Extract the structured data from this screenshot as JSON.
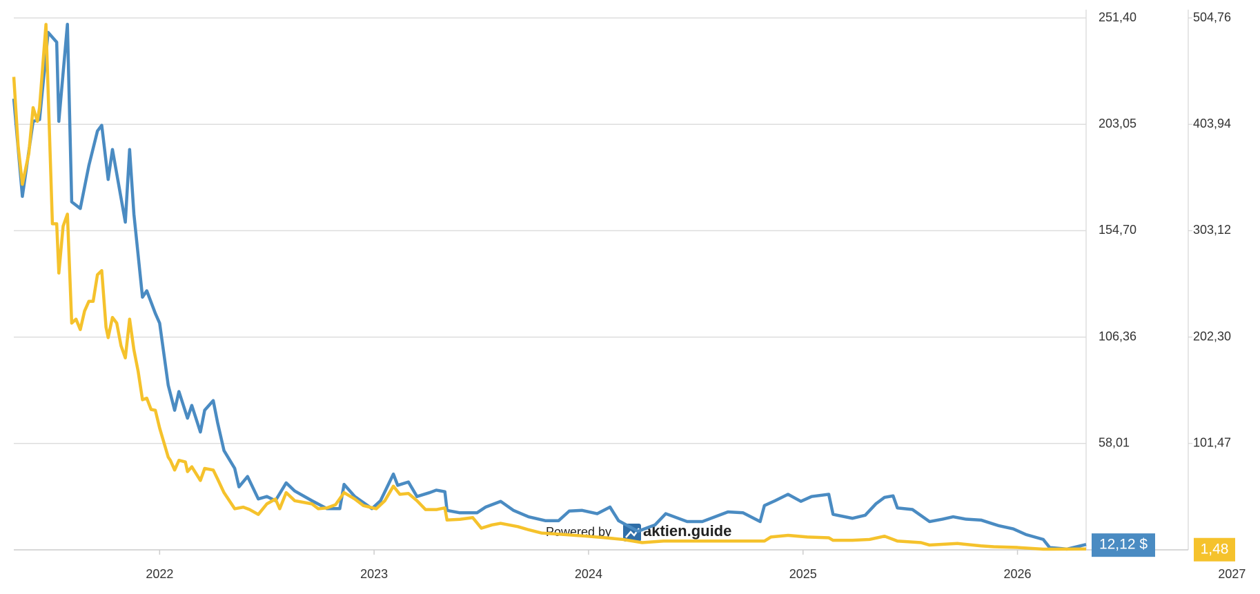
{
  "chart_data": {
    "type": "line",
    "grid": true,
    "xlim": [
      2021.32,
      2026.32
    ],
    "xticks": [
      2022,
      2023,
      2024,
      2025,
      2026,
      2027
    ],
    "ylim": [
      9.66,
      251.4
    ],
    "yticks": [
      {
        "value": 58.01,
        "label": "58,01"
      },
      {
        "value": 106.36,
        "label": "106,36"
      },
      {
        "value": 154.7,
        "label": "154,70"
      },
      {
        "value": 203.05,
        "label": "203,05"
      },
      {
        "value": 251.4,
        "label": "251,40"
      }
    ],
    "y2lim": [
      0.65,
      504.76
    ],
    "y2ticks": [
      {
        "value": 101.47,
        "label": "101,47"
      },
      {
        "value": 202.3,
        "label": "202,30"
      },
      {
        "value": 303.12,
        "label": "303,12"
      },
      {
        "value": 403.94,
        "label": "403,94"
      },
      {
        "value": 504.76,
        "label": "504,76"
      }
    ],
    "watermark": {
      "prefix": "Powered by",
      "brand": "aktien.guide"
    },
    "series": [
      {
        "color": "#4a8bc2",
        "x": [
          2021.32,
          2021.36,
          2021.41,
          2021.44,
          2021.48,
          2021.52,
          2021.53,
          2021.57,
          2021.59,
          2021.63,
          2021.67,
          2021.71,
          2021.73,
          2021.76,
          2021.78,
          2021.82,
          2021.84,
          2021.86,
          2021.88,
          2021.92,
          2021.94,
          2021.98,
          2022.0,
          2022.04,
          2022.07,
          2022.09,
          2022.13,
          2022.15,
          2022.19,
          2022.21,
          2022.25,
          2022.27,
          2022.3,
          2022.35,
          2022.37,
          2022.41,
          2022.46,
          2022.5,
          2022.54,
          2022.59,
          2022.63,
          2022.71,
          2022.78,
          2022.84,
          2022.86,
          2022.91,
          2022.99,
          2023.03,
          2023.09,
          2023.11,
          2023.16,
          2023.2,
          2023.26,
          2023.29,
          2023.33,
          2023.34,
          2023.4,
          2023.48,
          2023.52,
          2023.59,
          2023.65,
          2023.72,
          2023.8,
          2023.86,
          2023.91,
          2023.97,
          2024.04,
          2024.1,
          2024.14,
          2024.23,
          2024.31,
          2024.36,
          2024.46,
          2024.53,
          2024.65,
          2024.72,
          2024.8,
          2024.82,
          2024.87,
          2024.93,
          2024.99,
          2025.04,
          2025.12,
          2025.14,
          2025.23,
          2025.29,
          2025.34,
          2025.38,
          2025.42,
          2025.44,
          2025.51,
          2025.59,
          2025.65,
          2025.7,
          2025.76,
          2025.83,
          2025.91,
          2025.98,
          2026.04,
          2026.12,
          2026.15,
          2026.23,
          2026.32
        ],
        "values": [
          214.7,
          170.3,
          204.4,
          205.2,
          244.8,
          240.4,
          204.4,
          248.5,
          167.8,
          164.8,
          184.3,
          200.0,
          202.6,
          178.0,
          191.6,
          169.6,
          158.6,
          191.6,
          162.3,
          124.5,
          127.4,
          117.1,
          112.7,
          84.5,
          73.1,
          81.6,
          69.5,
          75.3,
          63.2,
          73.1,
          77.5,
          67.6,
          54.8,
          46.7,
          38.3,
          43.0,
          32.8,
          33.9,
          32.0,
          40.1,
          36.4,
          32.0,
          28.4,
          28.4,
          39.4,
          33.9,
          28.4,
          32.0,
          44.1,
          39.0,
          40.5,
          33.9,
          35.7,
          36.8,
          36.1,
          27.6,
          26.5,
          26.5,
          29.1,
          31.7,
          27.6,
          24.7,
          22.9,
          22.9,
          27.3,
          27.6,
          26.1,
          29.1,
          22.9,
          18.1,
          21.0,
          26.1,
          22.5,
          22.5,
          26.9,
          26.5,
          22.5,
          29.8,
          32.0,
          34.9,
          31.7,
          33.9,
          34.9,
          25.8,
          24.0,
          25.4,
          30.6,
          33.5,
          34.2,
          28.7,
          28.0,
          22.5,
          23.6,
          24.7,
          23.6,
          23.2,
          20.7,
          19.2,
          16.6,
          14.4,
          10.7,
          10.0,
          12.12
        ],
        "value_labels": [
          null,
          null,
          null,
          null,
          null,
          null,
          null,
          null,
          null,
          null,
          null,
          null,
          null,
          null,
          null,
          null,
          null,
          null,
          null,
          null,
          null,
          null,
          null,
          null,
          null,
          null,
          null,
          null,
          null,
          null,
          null,
          null,
          null,
          null,
          null,
          null,
          null,
          null,
          null,
          null,
          null,
          null,
          null,
          null,
          null,
          null,
          null,
          null,
          null,
          null,
          null,
          null,
          null,
          null,
          null,
          null,
          null,
          null,
          null,
          null,
          null,
          null,
          null,
          null,
          null,
          null,
          null,
          null,
          null,
          null,
          null,
          null,
          null,
          null,
          null,
          null,
          null,
          null,
          null,
          null,
          null,
          null,
          null,
          null,
          null,
          null,
          null,
          null,
          null,
          null,
          null,
          null,
          null,
          null,
          null,
          null,
          null,
          null,
          null,
          null,
          null,
          null,
          "12,12 $"
        ]
      },
      {
        "color": "#f5c22c",
        "axis": "y2",
        "x": [
          2021.32,
          2021.34,
          2021.36,
          2021.39,
          2021.41,
          2021.43,
          2021.44,
          2021.47,
          2021.5,
          2021.52,
          2021.53,
          2021.55,
          2021.57,
          2021.59,
          2021.61,
          2021.63,
          2021.65,
          2021.67,
          2021.69,
          2021.71,
          2021.73,
          2021.75,
          2021.76,
          2021.78,
          2021.8,
          2021.82,
          2021.84,
          2021.86,
          2021.88,
          2021.9,
          2021.92,
          2021.94,
          2021.96,
          2021.98,
          2022.0,
          2022.02,
          2022.04,
          2022.05,
          2022.07,
          2022.09,
          2022.12,
          2022.13,
          2022.15,
          2022.19,
          2022.21,
          2022.25,
          2022.27,
          2022.3,
          2022.35,
          2022.39,
          2022.42,
          2022.46,
          2022.5,
          2022.54,
          2022.56,
          2022.59,
          2022.63,
          2022.71,
          2022.74,
          2022.78,
          2022.82,
          2022.86,
          2022.91,
          2022.95,
          2023.01,
          2023.05,
          2023.09,
          2023.12,
          2023.16,
          2023.2,
          2023.24,
          2023.29,
          2023.33,
          2023.34,
          2023.4,
          2023.46,
          2023.5,
          2023.55,
          2023.59,
          2023.67,
          2023.72,
          2023.78,
          2023.89,
          2023.99,
          2024.08,
          2024.16,
          2024.25,
          2024.35,
          2024.44,
          2024.53,
          2024.65,
          2024.74,
          2024.82,
          2024.85,
          2024.93,
          2025.02,
          2025.12,
          2025.14,
          2025.23,
          2025.31,
          2025.38,
          2025.44,
          2025.55,
          2025.59,
          2025.72,
          2025.83,
          2025.89,
          2026.0,
          2026.12,
          2026.32
        ],
        "values": [
          448.9,
          383.9,
          347.1,
          376.2,
          419.8,
          406.8,
          419.8,
          498.6,
          309.7,
          309.7,
          263.0,
          307.4,
          318.8,
          215.5,
          219.3,
          209.4,
          227.0,
          236.2,
          236.2,
          261.4,
          265.3,
          211.7,
          201.8,
          220.9,
          215.5,
          194.1,
          182.6,
          219.3,
          190.3,
          169.6,
          142.9,
          144.4,
          133.7,
          132.9,
          116.1,
          102.3,
          88.5,
          85.5,
          76.3,
          85.5,
          84.0,
          74.8,
          79.4,
          66.4,
          77.8,
          76.3,
          67.9,
          54.9,
          39.6,
          41.1,
          38.8,
          34.2,
          44.2,
          48.8,
          39.6,
          54.9,
          47.2,
          44.2,
          39.6,
          40.4,
          43.4,
          54.9,
          48.8,
          42.6,
          39.6,
          47.2,
          61.0,
          53.3,
          54.1,
          47.2,
          38.8,
          38.8,
          40.4,
          28.9,
          29.6,
          31.2,
          21.2,
          24.3,
          25.8,
          22.7,
          19.7,
          16.6,
          15.1,
          13.6,
          12.1,
          10.5,
          7.5,
          9.0,
          9.0,
          9.0,
          9.0,
          9.0,
          9.0,
          12.8,
          14.4,
          12.8,
          12.1,
          9.7,
          9.7,
          10.5,
          13.6,
          9.0,
          7.5,
          5.2,
          6.7,
          4.4,
          3.6,
          2.9,
          1.3,
          1.48
        ],
        "value_labels": [
          null,
          null,
          null,
          null,
          null,
          null,
          null,
          null,
          null,
          null,
          null,
          null,
          null,
          null,
          null,
          null,
          null,
          null,
          null,
          null,
          null,
          null,
          null,
          null,
          null,
          null,
          null,
          null,
          null,
          null,
          null,
          null,
          null,
          null,
          null,
          null,
          null,
          null,
          null,
          null,
          null,
          null,
          null,
          null,
          null,
          null,
          null,
          null,
          null,
          null,
          null,
          null,
          null,
          null,
          null,
          null,
          null,
          null,
          null,
          null,
          null,
          null,
          null,
          null,
          null,
          null,
          null,
          null,
          null,
          null,
          null,
          null,
          null,
          null,
          null,
          null,
          null,
          null,
          null,
          null,
          null,
          null,
          null,
          null,
          null,
          null,
          null,
          null,
          null,
          null,
          null,
          null,
          null,
          null,
          null,
          null,
          null,
          null,
          null,
          null,
          null,
          null,
          null,
          null,
          null,
          null,
          null,
          null,
          null,
          "1,48"
        ]
      }
    ]
  }
}
